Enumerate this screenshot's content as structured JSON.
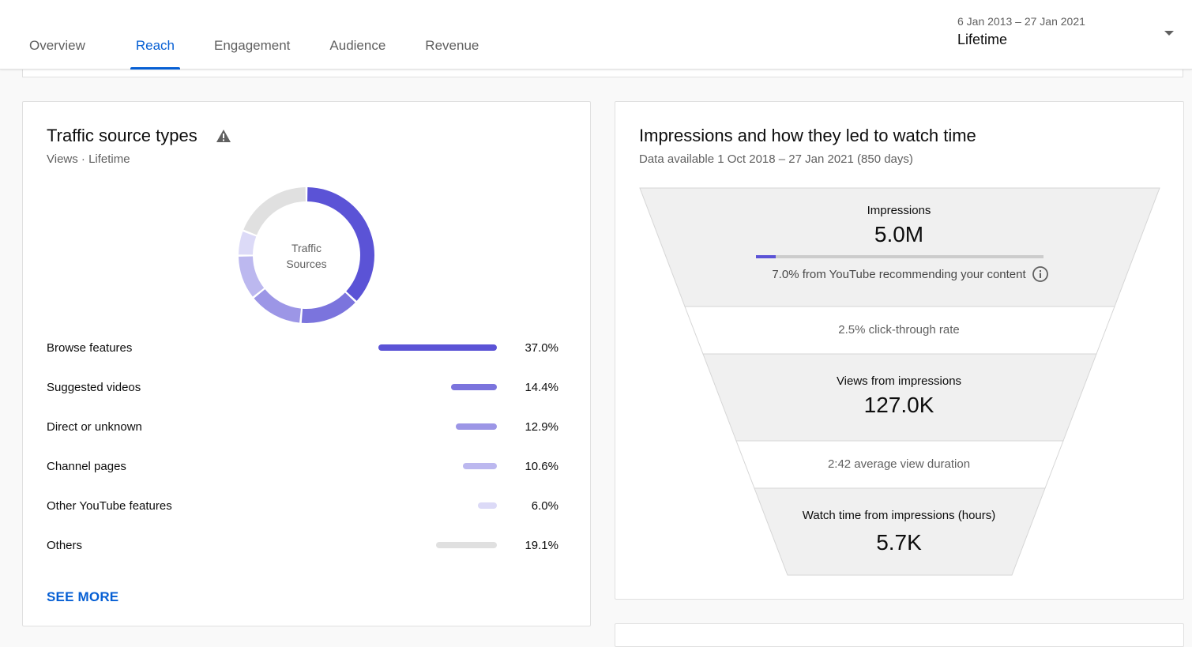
{
  "tabs": [
    {
      "label": "Overview"
    },
    {
      "label": "Reach"
    },
    {
      "label": "Engagement"
    },
    {
      "label": "Audience"
    },
    {
      "label": "Revenue"
    }
  ],
  "active_tab": "Reach",
  "date_range": {
    "range": "6 Jan 2013 – 27 Jan 2021",
    "period": "Lifetime",
    "caret_icon": "caret-down-icon"
  },
  "traffic": {
    "title": "Traffic source types",
    "warning_icon": "warning-icon",
    "subtitle": "Views · Lifetime",
    "donut_label_line1": "Traffic",
    "donut_label_line2": "Sources",
    "rows": [
      {
        "label": "Browse features",
        "value": "37.0%",
        "percent": 37.0,
        "color": "#5b53d6"
      },
      {
        "label": "Suggested videos",
        "value": "14.4%",
        "percent": 14.4,
        "color": "#7b74dd"
      },
      {
        "label": "Direct or unknown",
        "value": "12.9%",
        "percent": 12.9,
        "color": "#9c96e6"
      },
      {
        "label": "Channel pages",
        "value": "10.6%",
        "percent": 10.6,
        "color": "#bcb8ef"
      },
      {
        "label": "Other YouTube features",
        "value": "6.0%",
        "percent": 6.0,
        "color": "#dcdaf7"
      },
      {
        "label": "Others",
        "value": "19.1%",
        "percent": 19.1,
        "color": "#e0e0e0"
      }
    ],
    "see_more": "SEE MORE"
  },
  "impressions": {
    "title": "Impressions and how they led to watch time",
    "subtitle": "Data available 1 Oct 2018 – 27 Jan 2021 (850 days)",
    "impressions_label": "Impressions",
    "impressions_value": "5.0M",
    "recommend_text": "7.0% from YouTube recommending your content",
    "recommend_fraction": 0.07,
    "info_icon": "info-icon",
    "ctr_text": "2.5% click-through rate",
    "views_label": "Views from impressions",
    "views_value": "127.0K",
    "duration_text": "2:42 average view duration",
    "watch_label": "Watch time from impressions (hours)",
    "watch_value": "5.7K"
  },
  "colors": {
    "accent": "#065fd4",
    "chart_primary": "#5b53d6"
  }
}
